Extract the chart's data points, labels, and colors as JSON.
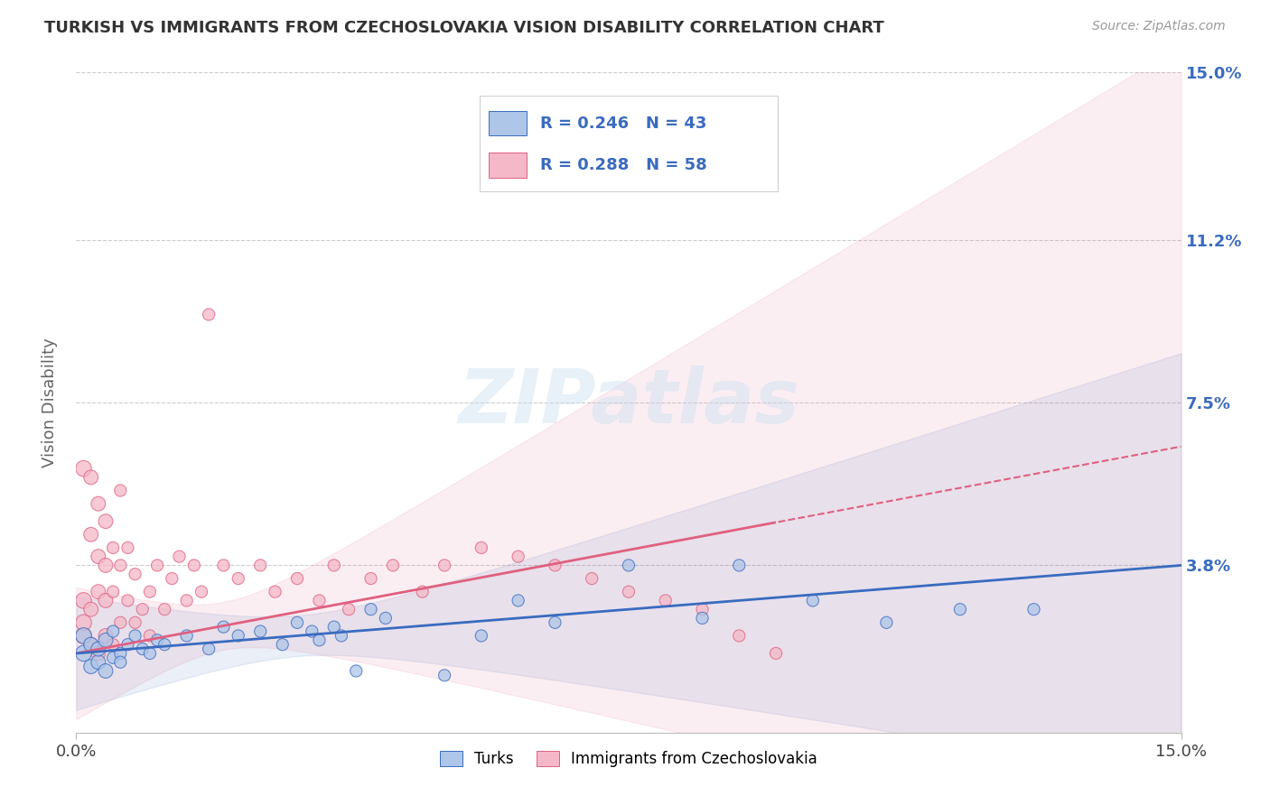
{
  "title": "TURKISH VS IMMIGRANTS FROM CZECHOSLOVAKIA VISION DISABILITY CORRELATION CHART",
  "source": "Source: ZipAtlas.com",
  "ylabel": "Vision Disability",
  "xlim": [
    0.0,
    0.15
  ],
  "ylim": [
    0.0,
    0.15
  ],
  "ytick_positions": [
    0.038,
    0.075,
    0.112,
    0.15
  ],
  "ytick_labels": [
    "3.8%",
    "7.5%",
    "11.2%",
    "15.0%"
  ],
  "grid_color": "#cccccc",
  "background_color": "#ffffff",
  "turks_color": "#aec6e8",
  "turks_line_color": "#3a6bbf",
  "czechs_color": "#f4b8c8",
  "czechs_line_color": "#e06080",
  "R_turks": 0.246,
  "N_turks": 43,
  "R_czechs": 0.288,
  "N_czechs": 58,
  "legend_label_turks": "Turks",
  "legend_label_czechs": "Immigrants from Czechoslovakia",
  "turks_x": [
    0.001,
    0.001,
    0.002,
    0.002,
    0.003,
    0.003,
    0.004,
    0.004,
    0.005,
    0.005,
    0.006,
    0.006,
    0.007,
    0.008,
    0.009,
    0.01,
    0.011,
    0.012,
    0.015,
    0.018,
    0.02,
    0.022,
    0.025,
    0.028,
    0.03,
    0.032,
    0.033,
    0.035,
    0.036,
    0.038,
    0.04,
    0.042,
    0.05,
    0.055,
    0.06,
    0.065,
    0.075,
    0.085,
    0.09,
    0.1,
    0.11,
    0.12,
    0.13
  ],
  "turks_y": [
    0.018,
    0.022,
    0.015,
    0.02,
    0.016,
    0.019,
    0.014,
    0.021,
    0.017,
    0.023,
    0.018,
    0.016,
    0.02,
    0.022,
    0.019,
    0.018,
    0.021,
    0.02,
    0.022,
    0.019,
    0.024,
    0.022,
    0.023,
    0.02,
    0.025,
    0.023,
    0.021,
    0.024,
    0.022,
    0.014,
    0.028,
    0.026,
    0.013,
    0.022,
    0.03,
    0.025,
    0.038,
    0.026,
    0.038,
    0.03,
    0.025,
    0.028,
    0.028
  ],
  "czechs_x": [
    0.001,
    0.001,
    0.001,
    0.001,
    0.002,
    0.002,
    0.002,
    0.002,
    0.003,
    0.003,
    0.003,
    0.003,
    0.004,
    0.004,
    0.004,
    0.004,
    0.005,
    0.005,
    0.005,
    0.006,
    0.006,
    0.006,
    0.007,
    0.007,
    0.008,
    0.008,
    0.009,
    0.01,
    0.01,
    0.011,
    0.012,
    0.013,
    0.014,
    0.015,
    0.016,
    0.017,
    0.018,
    0.02,
    0.022,
    0.025,
    0.027,
    0.03,
    0.033,
    0.035,
    0.037,
    0.04,
    0.043,
    0.047,
    0.05,
    0.055,
    0.06,
    0.065,
    0.07,
    0.075,
    0.08,
    0.085,
    0.09,
    0.095
  ],
  "czechs_y": [
    0.022,
    0.025,
    0.03,
    0.06,
    0.02,
    0.028,
    0.045,
    0.058,
    0.018,
    0.032,
    0.04,
    0.052,
    0.022,
    0.03,
    0.038,
    0.048,
    0.02,
    0.032,
    0.042,
    0.025,
    0.038,
    0.055,
    0.03,
    0.042,
    0.025,
    0.036,
    0.028,
    0.022,
    0.032,
    0.038,
    0.028,
    0.035,
    0.04,
    0.03,
    0.038,
    0.032,
    0.095,
    0.038,
    0.035,
    0.038,
    0.032,
    0.035,
    0.03,
    0.038,
    0.028,
    0.035,
    0.038,
    0.032,
    0.038,
    0.042,
    0.04,
    0.038,
    0.035,
    0.032,
    0.03,
    0.028,
    0.022,
    0.018
  ]
}
